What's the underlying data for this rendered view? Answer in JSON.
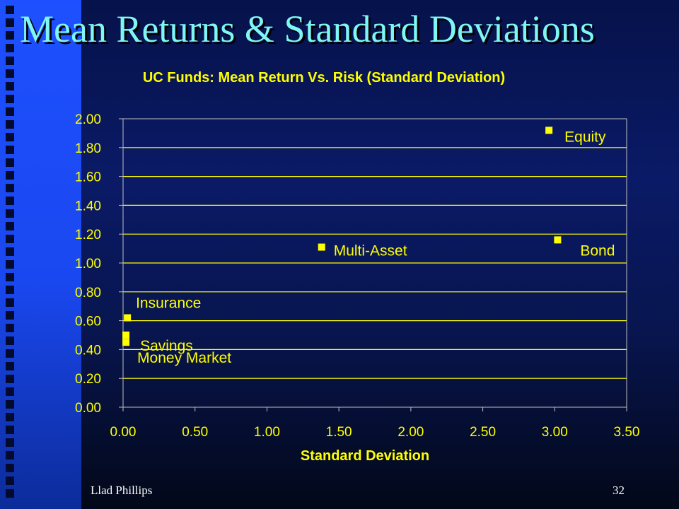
{
  "slide": {
    "title": "Mean Returns & Standard Deviations",
    "author": "Llad Phillips",
    "page_number": "32"
  },
  "colors": {
    "title": "#7ff5f5",
    "chart_text": "#ffff00",
    "point": "#ffff00",
    "grid": "#ffff00",
    "left_bar": "#1e50ff"
  },
  "chart_data": {
    "type": "scatter",
    "title": "UC Funds: Mean Return Vs. Risk (Standard Deviation)",
    "xlabel": "Standard Deviation",
    "ylabel": "",
    "xlim": [
      0,
      3.5
    ],
    "ylim": [
      0,
      2
    ],
    "xticks": [
      "0.00",
      "0.50",
      "1.00",
      "1.50",
      "2.00",
      "2.50",
      "3.00",
      "3.50"
    ],
    "yticks": [
      "0.00",
      "0.20",
      "0.40",
      "0.60",
      "0.80",
      "1.00",
      "1.20",
      "1.40",
      "1.60",
      "1.80",
      "2.00"
    ],
    "grid": "horizontal",
    "points": [
      {
        "label": "Equity",
        "x": 2.96,
        "y": 1.92
      },
      {
        "label": "Bond",
        "x": 3.02,
        "y": 1.16
      },
      {
        "label": "Multi-Asset",
        "x": 1.38,
        "y": 1.11
      },
      {
        "label": "Insurance",
        "x": 0.03,
        "y": 0.62
      },
      {
        "label": "Savings",
        "x": 0.02,
        "y": 0.5
      },
      {
        "label": "Money Market",
        "x": 0.02,
        "y": 0.45
      }
    ]
  }
}
